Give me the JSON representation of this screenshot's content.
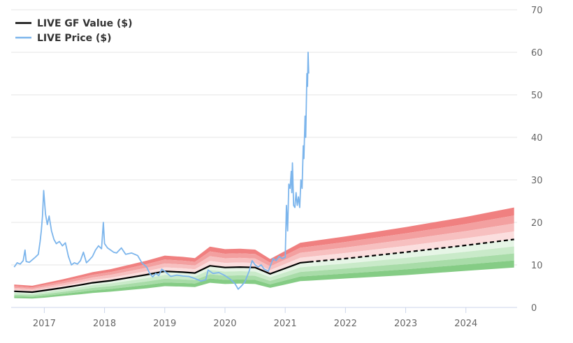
{
  "chart_data": {
    "type": "line",
    "title": "",
    "xlabel": "",
    "ylabel": "",
    "xlim": [
      2016.45,
      2024.85
    ],
    "ylim": [
      0,
      70
    ],
    "y_ticks": [
      0,
      10,
      20,
      30,
      40,
      50,
      60,
      70
    ],
    "x_ticks": [
      2017,
      2018,
      2019,
      2020,
      2021,
      2022,
      2023,
      2024
    ],
    "x_tick_labels": [
      "2017",
      "2018",
      "2019",
      "2020",
      "2021",
      "2022",
      "2023",
      "2024"
    ],
    "grid": "horizontal",
    "y_axis_side": "right",
    "legend_position": "top-left",
    "series": [
      {
        "name": "LIVE GF Value ($)",
        "color": "#000000",
        "style": "solid, dashed after 2021.4 (projection)",
        "points": [
          [
            2016.5,
            3.8
          ],
          [
            2016.8,
            3.6
          ],
          [
            2017.0,
            4.0
          ],
          [
            2017.3,
            4.6
          ],
          [
            2017.6,
            5.3
          ],
          [
            2017.8,
            5.8
          ],
          [
            2018.1,
            6.3
          ],
          [
            2018.4,
            7.0
          ],
          [
            2018.7,
            7.7
          ],
          [
            2019.0,
            8.5
          ],
          [
            2019.3,
            8.3
          ],
          [
            2019.5,
            8.1
          ],
          [
            2019.75,
            9.8
          ],
          [
            2020.0,
            9.4
          ],
          [
            2020.25,
            9.5
          ],
          [
            2020.5,
            9.4
          ],
          [
            2020.75,
            7.9
          ],
          [
            2021.0,
            9.2
          ],
          [
            2021.25,
            10.5
          ],
          [
            2021.4,
            10.7
          ],
          [
            2022.0,
            11.5
          ],
          [
            2023.0,
            13.0
          ],
          [
            2024.0,
            14.6
          ],
          [
            2024.8,
            16.0
          ]
        ]
      },
      {
        "name": "LIVE Price ($)",
        "color": "#7cb5ec",
        "points": [
          [
            2016.5,
            9.5
          ],
          [
            2016.55,
            10.5
          ],
          [
            2016.6,
            10.2
          ],
          [
            2016.65,
            11.0
          ],
          [
            2016.68,
            13.5
          ],
          [
            2016.7,
            10.8
          ],
          [
            2016.75,
            10.6
          ],
          [
            2016.8,
            11.2
          ],
          [
            2016.85,
            11.8
          ],
          [
            2016.9,
            12.5
          ],
          [
            2016.93,
            15.5
          ],
          [
            2016.95,
            18.0
          ],
          [
            2016.97,
            21.5
          ],
          [
            2016.99,
            27.5
          ],
          [
            2017.02,
            22.0
          ],
          [
            2017.05,
            19.5
          ],
          [
            2017.08,
            21.5
          ],
          [
            2017.12,
            18.0
          ],
          [
            2017.16,
            16.0
          ],
          [
            2017.2,
            15.0
          ],
          [
            2017.25,
            15.5
          ],
          [
            2017.3,
            14.5
          ],
          [
            2017.35,
            15.2
          ],
          [
            2017.4,
            12.0
          ],
          [
            2017.45,
            10.0
          ],
          [
            2017.5,
            10.5
          ],
          [
            2017.55,
            10.2
          ],
          [
            2017.6,
            11.0
          ],
          [
            2017.65,
            13.0
          ],
          [
            2017.7,
            10.5
          ],
          [
            2017.75,
            11.2
          ],
          [
            2017.8,
            12.0
          ],
          [
            2017.85,
            13.5
          ],
          [
            2017.9,
            14.5
          ],
          [
            2017.95,
            13.8
          ],
          [
            2017.98,
            20.0
          ],
          [
            2018.0,
            15.0
          ],
          [
            2018.05,
            14.0
          ],
          [
            2018.1,
            13.5
          ],
          [
            2018.15,
            13.0
          ],
          [
            2018.2,
            12.8
          ],
          [
            2018.28,
            14.0
          ],
          [
            2018.35,
            12.5
          ],
          [
            2018.45,
            12.8
          ],
          [
            2018.55,
            12.2
          ],
          [
            2018.62,
            10.5
          ],
          [
            2018.7,
            9.5
          ],
          [
            2018.75,
            8.0
          ],
          [
            2018.8,
            7.2
          ],
          [
            2018.85,
            8.0
          ],
          [
            2018.9,
            7.5
          ],
          [
            2018.95,
            9.0
          ],
          [
            2019.0,
            8.5
          ],
          [
            2019.1,
            7.3
          ],
          [
            2019.2,
            7.6
          ],
          [
            2019.3,
            7.4
          ],
          [
            2019.4,
            7.3
          ],
          [
            2019.5,
            6.8
          ],
          [
            2019.6,
            6.2
          ],
          [
            2019.68,
            6.5
          ],
          [
            2019.72,
            8.8
          ],
          [
            2019.8,
            8.0
          ],
          [
            2019.9,
            8.2
          ],
          [
            2020.0,
            7.5
          ],
          [
            2020.1,
            6.5
          ],
          [
            2020.17,
            5.5
          ],
          [
            2020.22,
            4.3
          ],
          [
            2020.27,
            5.0
          ],
          [
            2020.33,
            6.0
          ],
          [
            2020.4,
            8.5
          ],
          [
            2020.45,
            11.0
          ],
          [
            2020.5,
            10.0
          ],
          [
            2020.55,
            9.5
          ],
          [
            2020.6,
            10.0
          ],
          [
            2020.65,
            9.0
          ],
          [
            2020.72,
            8.5
          ],
          [
            2020.8,
            11.5
          ],
          [
            2020.85,
            11.0
          ],
          [
            2020.9,
            12.0
          ],
          [
            2020.95,
            11.5
          ],
          [
            2021.0,
            11.8
          ],
          [
            2021.02,
            24.0
          ],
          [
            2021.04,
            18.0
          ],
          [
            2021.06,
            29.0
          ],
          [
            2021.08,
            28.0
          ],
          [
            2021.1,
            32.0
          ],
          [
            2021.11,
            27.0
          ],
          [
            2021.12,
            34.0
          ],
          [
            2021.14,
            24.0
          ],
          [
            2021.16,
            23.5
          ],
          [
            2021.18,
            27.0
          ],
          [
            2021.2,
            24.0
          ],
          [
            2021.22,
            26.0
          ],
          [
            2021.24,
            23.5
          ],
          [
            2021.26,
            30.0
          ],
          [
            2021.28,
            28.0
          ],
          [
            2021.3,
            38.0
          ],
          [
            2021.31,
            35.0
          ],
          [
            2021.33,
            45.0
          ],
          [
            2021.34,
            40.0
          ],
          [
            2021.36,
            55.0
          ],
          [
            2021.37,
            52.0
          ],
          [
            2021.38,
            60.0
          ],
          [
            2021.39,
            55.0
          ]
        ]
      }
    ],
    "bands": {
      "description": "GF Value shading bands: red shades above the GF Value line, green shades below",
      "upper_limit": [
        [
          2016.5,
          5.4
        ],
        [
          2016.8,
          5.1
        ],
        [
          2017.0,
          5.7
        ],
        [
          2017.3,
          6.6
        ],
        [
          2017.6,
          7.6
        ],
        [
          2017.8,
          8.3
        ],
        [
          2018.1,
          9.0
        ],
        [
          2018.4,
          10.0
        ],
        [
          2018.7,
          11.0
        ],
        [
          2019.0,
          12.2
        ],
        [
          2019.3,
          11.9
        ],
        [
          2019.5,
          11.6
        ],
        [
          2019.75,
          14.3
        ],
        [
          2020.0,
          13.7
        ],
        [
          2020.25,
          13.8
        ],
        [
          2020.5,
          13.6
        ],
        [
          2020.75,
          11.4
        ],
        [
          2021.0,
          13.3
        ],
        [
          2021.25,
          15.2
        ],
        [
          2021.4,
          15.5
        ],
        [
          2022.0,
          16.7
        ],
        [
          2023.0,
          18.9
        ],
        [
          2024.0,
          21.3
        ],
        [
          2024.8,
          23.5
        ]
      ],
      "lower_limit": [
        [
          2016.5,
          2.2
        ],
        [
          2016.8,
          2.1
        ],
        [
          2017.0,
          2.3
        ],
        [
          2017.3,
          2.7
        ],
        [
          2017.6,
          3.1
        ],
        [
          2017.8,
          3.4
        ],
        [
          2018.1,
          3.7
        ],
        [
          2018.4,
          4.1
        ],
        [
          2018.7,
          4.5
        ],
        [
          2019.0,
          5.0
        ],
        [
          2019.3,
          4.9
        ],
        [
          2019.5,
          4.8
        ],
        [
          2019.75,
          5.8
        ],
        [
          2020.0,
          5.5
        ],
        [
          2020.25,
          5.6
        ],
        [
          2020.5,
          5.5
        ],
        [
          2020.75,
          4.6
        ],
        [
          2021.0,
          5.4
        ],
        [
          2021.25,
          6.2
        ],
        [
          2021.4,
          6.3
        ],
        [
          2022.0,
          6.8
        ],
        [
          2023.0,
          7.6
        ],
        [
          2024.0,
          8.6
        ],
        [
          2024.8,
          9.4
        ]
      ],
      "red_colors": [
        "#f08080",
        "#f3a0a0",
        "#f7c0c0",
        "#fbdede"
      ],
      "green_colors": [
        "#e6f5e6",
        "#c9eac9",
        "#a8dca8",
        "#85cc85"
      ]
    },
    "colors": {
      "gf_value": "#000000",
      "price": "#7cb5ec",
      "grid": "#e6e6e6",
      "axis_line": "#ccd6eb"
    }
  }
}
